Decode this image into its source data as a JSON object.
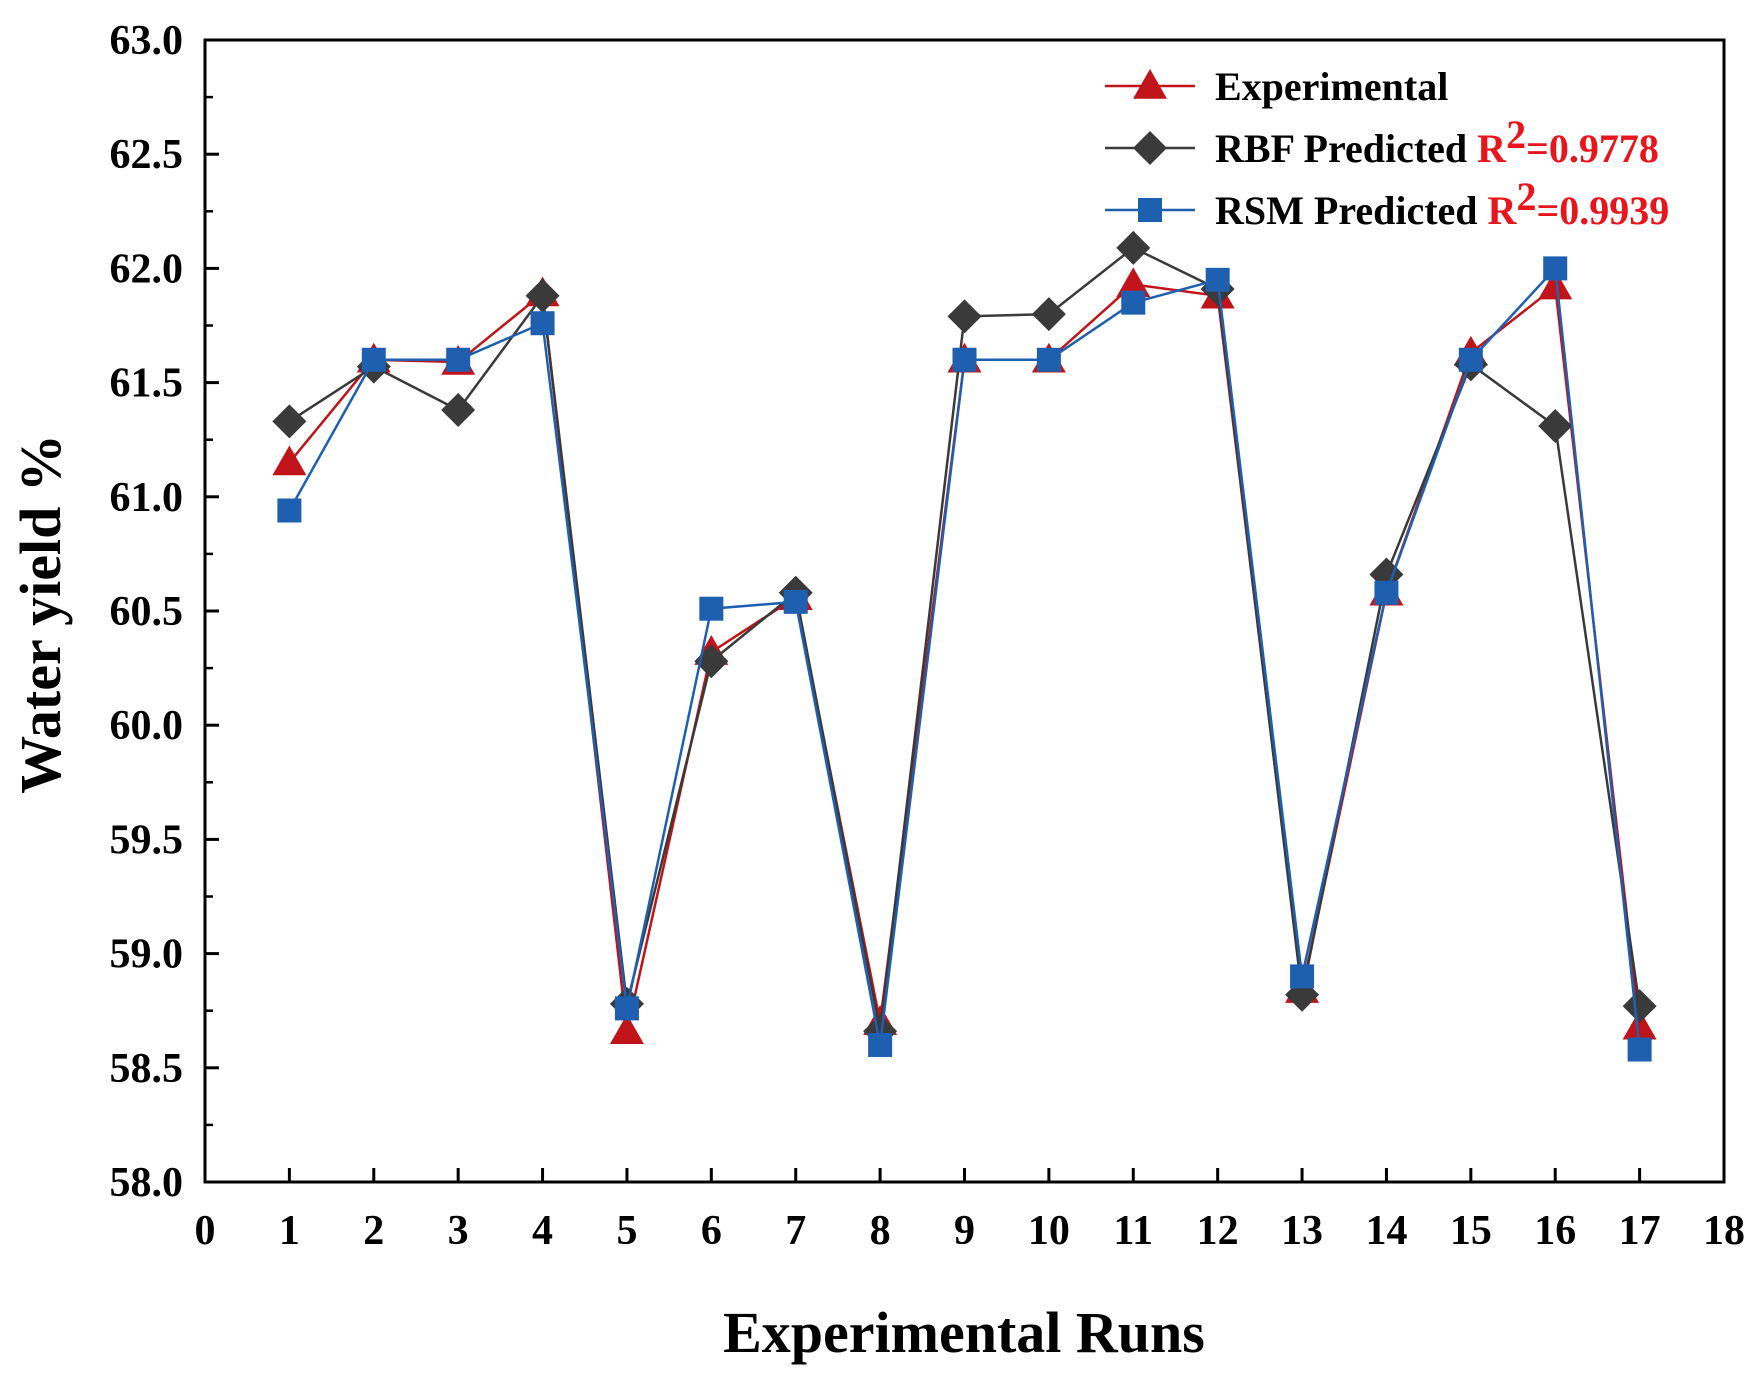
{
  "chart_data": {
    "type": "line",
    "title": "",
    "xlabel": "Experimental Runs",
    "ylabel": "Water yield %",
    "xlim": [
      0,
      18
    ],
    "ylim": [
      58.0,
      63.0
    ],
    "xticks": [
      0,
      1,
      2,
      3,
      4,
      5,
      6,
      7,
      8,
      9,
      10,
      11,
      12,
      13,
      14,
      15,
      16,
      17,
      18
    ],
    "xtick_labels": [
      "0",
      "1",
      "2",
      "3",
      "4",
      "5",
      "6",
      "7",
      "8",
      "9",
      "10",
      "11",
      "12",
      "13",
      "14",
      "15",
      "16",
      "17",
      "18"
    ],
    "yticks": [
      58.0,
      58.5,
      59.0,
      59.5,
      60.0,
      60.5,
      61.0,
      61.5,
      62.0,
      62.5,
      63.0
    ],
    "ytick_labels": [
      "58.0",
      "58.5",
      "59.0",
      "59.5",
      "60.0",
      "60.5",
      "61.0",
      "61.5",
      "62.0",
      "62.5",
      "63.0"
    ],
    "grid": false,
    "legend_position": "top-right",
    "x": [
      1,
      2,
      3,
      4,
      5,
      6,
      7,
      8,
      9,
      10,
      11,
      12,
      13,
      14,
      15,
      16,
      17
    ],
    "series": [
      {
        "name": "Experimental",
        "r2_label": "",
        "r2_sup": "",
        "r2_value": "",
        "color": "#c0141a",
        "marker": "triangle",
        "values": [
          61.15,
          61.6,
          61.59,
          61.89,
          58.66,
          60.32,
          60.56,
          58.7,
          61.6,
          61.6,
          61.93,
          61.88,
          58.84,
          60.58,
          61.63,
          61.92,
          58.68
        ]
      },
      {
        "name": "RBF Predicted",
        "r2_label": "R",
        "r2_sup": "2",
        "r2_value": "=0.9778",
        "color": "#3a3a3a",
        "marker": "diamond",
        "values": [
          61.33,
          61.57,
          61.38,
          61.88,
          58.78,
          60.28,
          60.58,
          58.66,
          61.79,
          61.8,
          62.09,
          61.91,
          58.82,
          60.66,
          61.58,
          61.31,
          58.77
        ]
      },
      {
        "name": "RSM Predicted",
        "r2_label": "R",
        "r2_sup": "2",
        "r2_value": "=0.9939",
        "color": "#1f5fb0",
        "marker": "square",
        "values": [
          60.94,
          61.6,
          61.6,
          61.76,
          58.76,
          60.51,
          60.54,
          58.6,
          61.6,
          61.6,
          61.85,
          61.95,
          58.9,
          60.58,
          61.6,
          62.0,
          58.58
        ]
      }
    ]
  }
}
